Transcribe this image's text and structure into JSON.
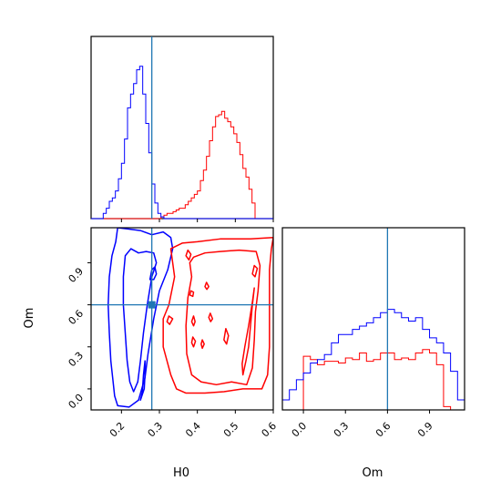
{
  "chart_data": {
    "type": "corner",
    "parameters": [
      "H0",
      "Om"
    ],
    "truth": {
      "H0": 0.28,
      "Om": 0.6
    },
    "colors": {
      "blue": "#0000ff",
      "red": "#ff0000",
      "truth": "#1f77b4",
      "axes": "#000000"
    },
    "ranges": {
      "H0": [
        0.12,
        0.6
      ],
      "Om": [
        -0.15,
        1.15
      ]
    },
    "xlabels": [
      "H0",
      "Om"
    ],
    "ylabel": "Om",
    "ticks": {
      "H0": [
        0.2,
        0.3,
        0.4,
        0.5,
        0.6
      ],
      "H0_labels": [
        "0.2",
        "0.3",
        "0.4",
        "0.5",
        "0.6"
      ],
      "Om": [
        0.0,
        0.3,
        0.6,
        0.9
      ],
      "Om_labels": [
        "0.0",
        "0.3",
        "0.6",
        "0.9"
      ]
    },
    "hist_H0": {
      "bin_start": 0.12,
      "bin_width": 0.008,
      "blue": [
        0,
        0,
        0,
        0,
        0.03,
        0.06,
        0.1,
        0.12,
        0.16,
        0.23,
        0.32,
        0.46,
        0.64,
        0.72,
        0.78,
        0.86,
        0.88,
        0.72,
        0.55,
        0.38,
        0.2,
        0.09,
        0.03,
        0.01,
        0,
        0,
        0,
        0,
        0,
        0,
        0,
        0,
        0,
        0,
        0,
        0,
        0,
        0,
        0,
        0,
        0,
        0,
        0,
        0,
        0,
        0,
        0,
        0,
        0,
        0,
        0,
        0,
        0,
        0,
        0,
        0,
        0,
        0,
        0,
        0
      ],
      "red": [
        0,
        0,
        0,
        0,
        0,
        0,
        0,
        0,
        0,
        0,
        0,
        0,
        0,
        0,
        0,
        0,
        0,
        0,
        0,
        0,
        0,
        0,
        0,
        0.01,
        0.02,
        0.03,
        0.03,
        0.04,
        0.05,
        0.06,
        0.06,
        0.08,
        0.1,
        0.12,
        0.14,
        0.16,
        0.22,
        0.28,
        0.36,
        0.45,
        0.53,
        0.59,
        0.6,
        0.62,
        0.58,
        0.56,
        0.53,
        0.49,
        0.44,
        0.37,
        0.29,
        0.24,
        0.17,
        0.09,
        0,
        0,
        0,
        0,
        0,
        0
      ]
    },
    "hist_Om": {
      "bin_start": -0.15,
      "bin_width": 0.05,
      "blue": [
        0.06,
        0.12,
        0.18,
        0.22,
        0.28,
        0.3,
        0.33,
        0.4,
        0.45,
        0.45,
        0.48,
        0.5,
        0.52,
        0.55,
        0.58,
        0.6,
        0.58,
        0.55,
        0.53,
        0.55,
        0.48,
        0.43,
        0.4,
        0.34,
        0.23,
        0.06,
        0.0
      ],
      "red": [
        0,
        0,
        0,
        0.32,
        0.3,
        0.27,
        0.29,
        0.29,
        0.28,
        0.31,
        0.3,
        0.34,
        0.29,
        0.3,
        0.34,
        0.34,
        0.3,
        0.31,
        0.3,
        0.34,
        0.36,
        0.34,
        0.27,
        0.02,
        0,
        0,
        0
      ]
    },
    "contours": {
      "blue": [
        [
          [
            0.19,
            1.15
          ],
          [
            0.185,
            1.05
          ],
          [
            0.175,
            0.95
          ],
          [
            0.168,
            0.8
          ],
          [
            0.165,
            0.6
          ],
          [
            0.168,
            0.4
          ],
          [
            0.172,
            0.2
          ],
          [
            0.178,
            0.05
          ],
          [
            0.182,
            -0.05
          ],
          [
            0.19,
            -0.12
          ],
          [
            0.22,
            -0.13
          ],
          [
            0.245,
            -0.08
          ],
          [
            0.262,
            0.08
          ],
          [
            0.27,
            0.25
          ],
          [
            0.285,
            0.5
          ],
          [
            0.3,
            0.7
          ],
          [
            0.322,
            0.85
          ],
          [
            0.335,
            1.0
          ],
          [
            0.33,
            1.08
          ],
          [
            0.31,
            1.12
          ],
          [
            0.28,
            1.1
          ],
          [
            0.25,
            1.13
          ],
          [
            0.22,
            1.14
          ],
          [
            0.19,
            1.15
          ]
        ],
        [
          [
            0.21,
            0.95
          ],
          [
            0.205,
            0.8
          ],
          [
            0.205,
            0.6
          ],
          [
            0.21,
            0.4
          ],
          [
            0.215,
            0.2
          ],
          [
            0.222,
            0.05
          ],
          [
            0.232,
            -0.02
          ],
          [
            0.243,
            0.05
          ],
          [
            0.25,
            0.2
          ],
          [
            0.258,
            0.4
          ],
          [
            0.268,
            0.6
          ],
          [
            0.28,
            0.8
          ],
          [
            0.292,
            0.9
          ],
          [
            0.285,
            0.97
          ],
          [
            0.265,
            0.98
          ],
          [
            0.245,
            0.97
          ],
          [
            0.225,
            1.0
          ],
          [
            0.21,
            0.95
          ]
        ],
        [
          [
            0.25,
            -0.08
          ],
          [
            0.26,
            0.0
          ],
          [
            0.262,
            0.1
          ],
          [
            0.262,
            0.2
          ],
          [
            0.258,
            0.1
          ],
          [
            0.255,
            -0.02
          ],
          [
            0.25,
            -0.08
          ]
        ],
        [
          [
            0.275,
            0.78
          ],
          [
            0.28,
            0.85
          ],
          [
            0.288,
            0.87
          ],
          [
            0.292,
            0.82
          ],
          [
            0.285,
            0.78
          ],
          [
            0.275,
            0.78
          ]
        ]
      ],
      "red": [
        [
          [
            0.33,
            1.0
          ],
          [
            0.34,
            0.8
          ],
          [
            0.325,
            0.6
          ],
          [
            0.31,
            0.5
          ],
          [
            0.31,
            0.3
          ],
          [
            0.33,
            0.1
          ],
          [
            0.345,
            0.0
          ],
          [
            0.37,
            -0.03
          ],
          [
            0.42,
            -0.03
          ],
          [
            0.47,
            -0.02
          ],
          [
            0.52,
            0.0
          ],
          [
            0.57,
            0.0
          ],
          [
            0.585,
            0.1
          ],
          [
            0.59,
            0.3
          ],
          [
            0.59,
            0.6
          ],
          [
            0.59,
            0.85
          ],
          [
            0.595,
            1.0
          ],
          [
            0.6,
            1.08
          ],
          [
            0.54,
            1.07
          ],
          [
            0.46,
            1.07
          ],
          [
            0.4,
            1.05
          ],
          [
            0.36,
            1.04
          ],
          [
            0.33,
            1.0
          ]
        ],
        [
          [
            0.38,
            0.9
          ],
          [
            0.385,
            0.8
          ],
          [
            0.375,
            0.65
          ],
          [
            0.37,
            0.45
          ],
          [
            0.372,
            0.25
          ],
          [
            0.385,
            0.1
          ],
          [
            0.41,
            0.05
          ],
          [
            0.45,
            0.03
          ],
          [
            0.49,
            0.05
          ],
          [
            0.53,
            0.03
          ],
          [
            0.545,
            0.15
          ],
          [
            0.55,
            0.35
          ],
          [
            0.553,
            0.55
          ],
          [
            0.56,
            0.7
          ],
          [
            0.565,
            0.88
          ],
          [
            0.555,
            0.98
          ],
          [
            0.51,
            0.99
          ],
          [
            0.46,
            0.98
          ],
          [
            0.42,
            0.97
          ],
          [
            0.39,
            0.94
          ],
          [
            0.38,
            0.9
          ]
        ],
        [
          [
            0.52,
            0.1
          ],
          [
            0.528,
            0.2
          ],
          [
            0.535,
            0.3
          ],
          [
            0.54,
            0.45
          ],
          [
            0.545,
            0.6
          ],
          [
            0.55,
            0.72
          ],
          [
            0.545,
            0.62
          ],
          [
            0.535,
            0.45
          ],
          [
            0.525,
            0.3
          ],
          [
            0.518,
            0.18
          ],
          [
            0.52,
            0.1
          ]
        ],
        [
          [
            0.37,
            0.95
          ],
          [
            0.375,
            0.99
          ],
          [
            0.383,
            0.96
          ],
          [
            0.378,
            0.92
          ],
          [
            0.37,
            0.95
          ]
        ],
        [
          [
            0.38,
            0.67
          ],
          [
            0.383,
            0.7
          ],
          [
            0.39,
            0.69
          ],
          [
            0.388,
            0.66
          ],
          [
            0.38,
            0.67
          ]
        ],
        [
          [
            0.385,
            0.48
          ],
          [
            0.39,
            0.52
          ],
          [
            0.394,
            0.48
          ],
          [
            0.39,
            0.45
          ],
          [
            0.385,
            0.48
          ]
        ],
        [
          [
            0.385,
            0.33
          ],
          [
            0.388,
            0.37
          ],
          [
            0.395,
            0.34
          ],
          [
            0.39,
            0.3
          ],
          [
            0.385,
            0.33
          ]
        ],
        [
          [
            0.41,
            0.32
          ],
          [
            0.413,
            0.35
          ],
          [
            0.418,
            0.32
          ],
          [
            0.413,
            0.29
          ],
          [
            0.41,
            0.32
          ]
        ],
        [
          [
            0.43,
            0.51
          ],
          [
            0.434,
            0.54
          ],
          [
            0.44,
            0.5
          ],
          [
            0.435,
            0.48
          ],
          [
            0.43,
            0.51
          ]
        ],
        [
          [
            0.42,
            0.73
          ],
          [
            0.424,
            0.76
          ],
          [
            0.43,
            0.73
          ],
          [
            0.425,
            0.71
          ],
          [
            0.42,
            0.73
          ]
        ],
        [
          [
            0.32,
            0.48
          ],
          [
            0.325,
            0.52
          ],
          [
            0.335,
            0.5
          ],
          [
            0.327,
            0.46
          ],
          [
            0.32,
            0.48
          ]
        ],
        [
          [
            0.47,
            0.35
          ],
          [
            0.475,
            0.43
          ],
          [
            0.482,
            0.38
          ],
          [
            0.477,
            0.32
          ],
          [
            0.47,
            0.35
          ]
        ],
        [
          [
            0.545,
            0.82
          ],
          [
            0.55,
            0.88
          ],
          [
            0.558,
            0.86
          ],
          [
            0.552,
            0.8
          ],
          [
            0.545,
            0.82
          ]
        ]
      ]
    }
  }
}
